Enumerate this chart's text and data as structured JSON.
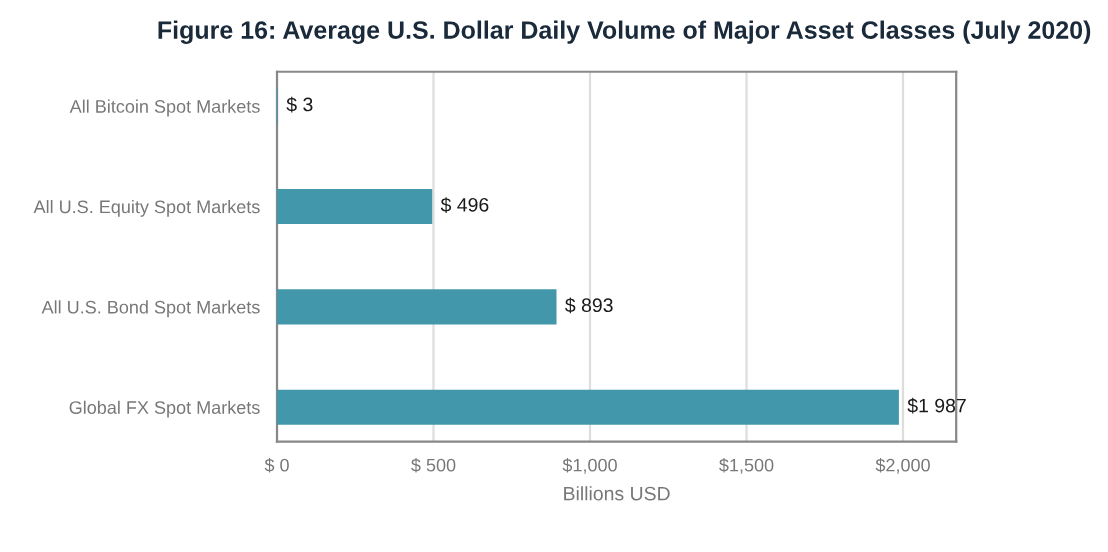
{
  "chart_data": {
    "type": "bar",
    "orientation": "horizontal",
    "title": "Figure 16: Average U.S. Dollar Daily Volume of Major Asset Classes (July 2020)",
    "categories": [
      "All Bitcoin Spot Markets",
      "All U.S. Equity Spot Markets",
      "All U.S. Bond Spot Markets",
      "Global FX Spot Markets"
    ],
    "values": [
      3,
      496,
      893,
      1987
    ],
    "color": "#4397ab",
    "value_labels": [
      "$ 3",
      "$ 496",
      "$ 893",
      "$1 987"
    ],
    "xlabel": "Billions USD",
    "xlim": [
      0,
      2170
    ],
    "xticks": [
      {
        "value": 0,
        "label": "$ 0"
      },
      {
        "value": 500,
        "label": "$ 500"
      },
      {
        "value": 1000,
        "label": "$1,000"
      },
      {
        "value": 1500,
        "label": "$1,500"
      },
      {
        "value": 2000,
        "label": "$2,000"
      }
    ],
    "grid": "x",
    "legend": false
  }
}
